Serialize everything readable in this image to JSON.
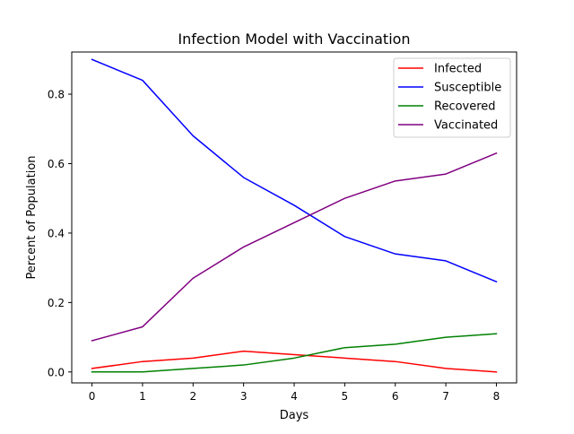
{
  "chart_data": {
    "type": "line",
    "title": "Infection Model with Vaccination",
    "xlabel": "Days",
    "ylabel": "Percent of Population",
    "x": [
      0,
      1,
      2,
      3,
      4,
      5,
      6,
      7,
      8
    ],
    "xlim": [
      -0.4,
      8.4
    ],
    "ylim": [
      -0.0315,
      0.9215
    ],
    "xticks": [
      "0",
      "1",
      "2",
      "3",
      "4",
      "5",
      "6",
      "7",
      "8"
    ],
    "yticks": [
      "0.0",
      "0.2",
      "0.4",
      "0.6",
      "0.8"
    ],
    "grid": false,
    "legend_position": "top-right",
    "series": [
      {
        "name": "Infected",
        "color": "#ff0000",
        "values": [
          0.01,
          0.03,
          0.04,
          0.06,
          0.05,
          0.04,
          0.03,
          0.01,
          0.0
        ]
      },
      {
        "name": "Susceptible",
        "color": "#0000ff",
        "values": [
          0.9,
          0.84,
          0.68,
          0.56,
          0.48,
          0.39,
          0.34,
          0.32,
          0.26
        ]
      },
      {
        "name": "Recovered",
        "color": "#008000",
        "values": [
          0.0,
          0.0,
          0.01,
          0.02,
          0.04,
          0.07,
          0.08,
          0.1,
          0.11
        ]
      },
      {
        "name": "Vaccinated",
        "color": "#800080",
        "values": [
          0.09,
          0.13,
          0.27,
          0.36,
          0.43,
          0.5,
          0.55,
          0.57,
          0.63
        ]
      }
    ]
  }
}
